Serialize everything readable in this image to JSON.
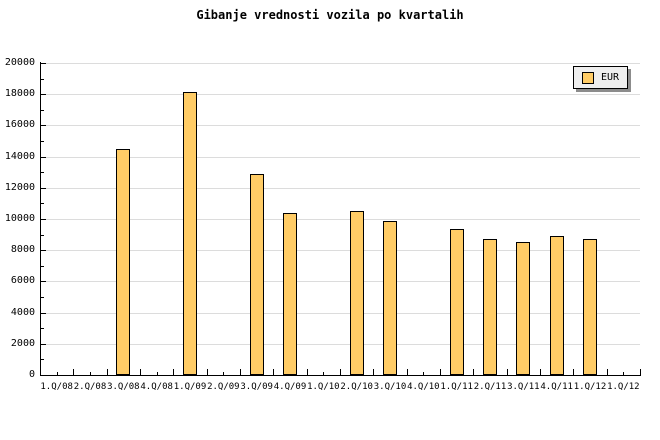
{
  "title": "Gibanje vrednosti vozila po kvartalih",
  "legend": {
    "label": "EUR",
    "swatch_color": "#ffcc66"
  },
  "colors": {
    "bar_fill": "#ffcc66",
    "bar_border": "#000000",
    "gridline": "#dcdcdc",
    "axis": "#000000",
    "legend_bg": "#eeeeee",
    "legend_shadow": "#8c8c8c",
    "background": "#ffffff"
  },
  "chart_data": {
    "type": "bar",
    "title": "Gibanje vrednosti vozila po kvartalih",
    "categories": [
      "1.Q/08",
      "2.Q/08",
      "3.Q/08",
      "4.Q/08",
      "1.Q/09",
      "2.Q/09",
      "3.Q/09",
      "4.Q/09",
      "1.Q/10",
      "2.Q/10",
      "3.Q/10",
      "4.Q/10",
      "1.Q/11",
      "2.Q/11",
      "3.Q/11",
      "4.Q/11",
      "1.Q/12",
      "1.Q/12"
    ],
    "series": [
      {
        "name": "EUR",
        "values": [
          null,
          null,
          14500,
          null,
          18150,
          null,
          12900,
          10400,
          null,
          10500,
          9900,
          null,
          9350,
          8700,
          8500,
          8900,
          8750,
          null
        ]
      }
    ],
    "xlabel": "",
    "ylabel": "",
    "ylim": [
      0,
      20000
    ],
    "ytick_step": 2000,
    "ytick_minor_step": 1000,
    "yticks": [
      0,
      2000,
      4000,
      6000,
      8000,
      10000,
      12000,
      14000,
      16000,
      18000,
      20000
    ],
    "grid": "horizontal-major",
    "legend_position": "top-right"
  }
}
